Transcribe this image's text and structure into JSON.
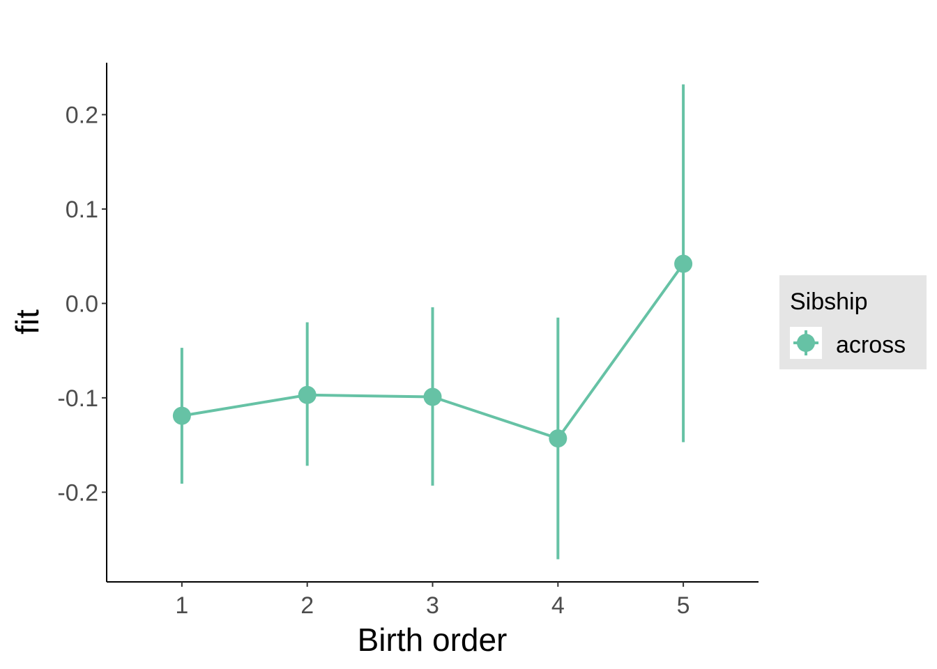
{
  "chart_data": {
    "type": "line",
    "xlabel": "Birth order",
    "ylabel": "fit",
    "categories": [
      "1",
      "2",
      "3",
      "4",
      "5"
    ],
    "x": [
      1,
      2,
      3,
      4,
      5
    ],
    "xlim": [
      0.4,
      5.6
    ],
    "ylim": [
      -0.295,
      0.255
    ],
    "yticks": [
      -0.2,
      -0.1,
      0.0,
      0.1,
      0.2
    ],
    "ytick_labels": [
      "-0.2",
      "-0.1",
      "0.0",
      "0.1",
      "0.2"
    ],
    "grid": false,
    "legend": {
      "title": "Sibship",
      "placement": "right"
    },
    "series": [
      {
        "name": "across",
        "color": "#66c2a5",
        "values": [
          -0.119,
          -0.097,
          -0.099,
          -0.143,
          0.042
        ],
        "lower": [
          -0.191,
          -0.172,
          -0.193,
          -0.271,
          -0.147
        ],
        "upper": [
          -0.047,
          -0.02,
          -0.004,
          -0.015,
          0.232
        ]
      }
    ]
  }
}
